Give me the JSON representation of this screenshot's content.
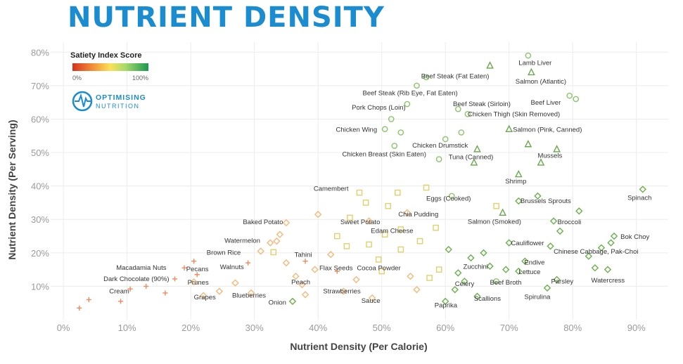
{
  "header": {
    "title": "NUTRIENT DENSITY"
  },
  "legend": {
    "title": "Satiety Index Score",
    "min_label": "0%",
    "max_label": "100%",
    "colors": [
      "#d7301f",
      "#f59b3c",
      "#fbe15a",
      "#a6d96a",
      "#1a9850"
    ]
  },
  "brand": {
    "line1": "OPTIMISING",
    "line2": "NUTRITION",
    "color": "#1a8ccf"
  },
  "chart_data": {
    "type": "scatter",
    "xlabel": "Nutrient Density (Per Calorie)",
    "ylabel": "Nutrient Density (Per Serving)",
    "xlim": [
      -2,
      95
    ],
    "ylim": [
      0,
      83
    ],
    "x_ticks": [
      "0%",
      "10%",
      "20%",
      "30%",
      "40%",
      "50%",
      "60%",
      "70%",
      "80%",
      "90%"
    ],
    "y_ticks": [
      "10%",
      "20%",
      "30%",
      "40%",
      "50%",
      "60%",
      "70%",
      "80%"
    ],
    "x_tick_values": [
      0,
      10,
      20,
      30,
      40,
      50,
      60,
      70,
      80,
      90
    ],
    "y_tick_values": [
      10,
      20,
      30,
      40,
      50,
      60,
      70,
      80
    ],
    "categories": [
      "fats_nuts",
      "starches_fruit",
      "grains_dairy",
      "animal",
      "vegetables",
      "seafood"
    ],
    "category_colors": {
      "fats_nuts": "#f08a5d",
      "starches_fruit": "#f5b87a",
      "grains_dairy": "#e3cf6d",
      "animal": "#8cc46b",
      "vegetables": "#6ab04c",
      "seafood": "#6aa84f"
    },
    "category_markers": {
      "fats_nuts": "plus",
      "starches_fruit": "diamond",
      "grains_dairy": "square",
      "animal": "circle",
      "vegetables": "diamond",
      "seafood": "triangle"
    },
    "points": [
      {
        "label": "Cream",
        "x": 10.5,
        "y": 9.2,
        "cat": "fats_nuts",
        "lx": 7.2,
        "ly": 8.5,
        "anchor": "start"
      },
      {
        "label": "Dark Chocolate (90%)",
        "x": 17.5,
        "y": 12.2,
        "cat": "fats_nuts",
        "lx": 6.3,
        "ly": 12.2,
        "anchor": "start"
      },
      {
        "label": "Macadamia Nuts",
        "x": 19,
        "y": 15.5,
        "cat": "fats_nuts",
        "lx": 8.3,
        "ly": 15.5,
        "anchor": "start"
      },
      {
        "label": "Pecans",
        "x": 20.5,
        "y": 17.5,
        "cat": "fats_nuts",
        "lx": 19.3,
        "ly": 15.1,
        "anchor": "start"
      },
      {
        "label": "Prunes",
        "x": 20.5,
        "y": 11.3,
        "cat": "starches_fruit",
        "lx": 19.5,
        "ly": 11.1,
        "anchor": "start"
      },
      {
        "label": "Grapes",
        "x": 22,
        "y": 7.2,
        "cat": "starches_fruit",
        "lx": 20.5,
        "ly": 6.7,
        "anchor": "start"
      },
      {
        "label": "Walnuts",
        "x": 29,
        "y": 17,
        "cat": "fats_nuts",
        "lx": 24.6,
        "ly": 15.8,
        "anchor": "start"
      },
      {
        "label": "Blueberries",
        "x": 29.5,
        "y": 8,
        "cat": "starches_fruit",
        "lx": 26.5,
        "ly": 7.3,
        "anchor": "start"
      },
      {
        "label": "Brown Rice",
        "x": 33,
        "y": 20.2,
        "cat": "grains_dairy",
        "lx": 22.5,
        "ly": 20.1,
        "anchor": "start"
      },
      {
        "label": "Watermelon",
        "x": 33.5,
        "y": 23.5,
        "cat": "starches_fruit",
        "lx": 25.3,
        "ly": 23.6,
        "anchor": "start"
      },
      {
        "label": "Baked Potato",
        "x": 35,
        "y": 29,
        "cat": "starches_fruit",
        "lx": 28.2,
        "ly": 29.2,
        "anchor": "start"
      },
      {
        "label": "Onion",
        "x": 36,
        "y": 5.5,
        "cat": "vegetables",
        "lx": 32.2,
        "ly": 5.1,
        "anchor": "start"
      },
      {
        "label": "Peach",
        "x": 37.5,
        "y": 10.5,
        "cat": "starches_fruit",
        "lx": 35.8,
        "ly": 11.2,
        "anchor": "start"
      },
      {
        "label": "Tahini",
        "x": 38,
        "y": 17.5,
        "cat": "fats_nuts",
        "lx": 36.3,
        "ly": 19.4,
        "anchor": "start"
      },
      {
        "label": "Flax Seeds",
        "x": 43,
        "y": 14.5,
        "cat": "fats_nuts",
        "lx": 40.2,
        "ly": 15.4,
        "anchor": "start"
      },
      {
        "label": "Strawberries",
        "x": 44,
        "y": 8.5,
        "cat": "starches_fruit",
        "lx": 40.8,
        "ly": 8.5,
        "anchor": "start"
      },
      {
        "label": "Camembert",
        "x": 46.5,
        "y": 38,
        "cat": "grains_dairy",
        "lx": 39.3,
        "ly": 39.2,
        "anchor": "start"
      },
      {
        "label": "Sweet Potato",
        "x": 48,
        "y": 29.5,
        "cat": "starches_fruit",
        "lx": 43.5,
        "ly": 29.2,
        "anchor": "start"
      },
      {
        "label": "Cocoa Powder",
        "x": 50,
        "y": 14.5,
        "cat": "grains_dairy",
        "lx": 46.1,
        "ly": 15.4,
        "anchor": "start"
      },
      {
        "label": "Sauce",
        "x": 48.5,
        "y": 6.5,
        "cat": "starches_fruit",
        "lx": 46.8,
        "ly": 5.7,
        "anchor": "start"
      },
      {
        "label": "Edam Cheese",
        "x": 53,
        "y": 27,
        "cat": "grains_dairy",
        "lx": 48.3,
        "ly": 26.6,
        "anchor": "start"
      },
      {
        "label": "Chia Pudding",
        "x": 54,
        "y": 32,
        "cat": "starches_fruit",
        "lx": 52.6,
        "ly": 31.5,
        "anchor": "start"
      },
      {
        "label": "Chicken Breast (Skin Eaten)",
        "x": 52,
        "y": 52,
        "cat": "animal",
        "lx": 43.8,
        "ly": 49.5,
        "anchor": "start"
      },
      {
        "label": "Chicken Wing",
        "x": 50.5,
        "y": 57,
        "cat": "animal",
        "lx": 42.8,
        "ly": 56.8,
        "anchor": "start"
      },
      {
        "label": "Pork Chops (Loin)",
        "x": 54,
        "y": 64.5,
        "cat": "animal",
        "lx": 45.3,
        "ly": 63.5,
        "anchor": "start"
      },
      {
        "label": "Beef Steak (Rib Eye, Fat Eaten)",
        "x": 55.5,
        "y": 70,
        "cat": "animal",
        "lx": 47,
        "ly": 67.8,
        "anchor": "start"
      },
      {
        "label": "Beef Steak (Fat Eaten)",
        "x": 57,
        "y": 72.5,
        "cat": "animal",
        "lx": 56.2,
        "ly": 72.8,
        "anchor": "start"
      },
      {
        "label": "Beef Steak (Sirloin)",
        "x": 62,
        "y": 63,
        "cat": "animal",
        "lx": 61.2,
        "ly": 64.5,
        "anchor": "start"
      },
      {
        "label": "Chicken Thigh (Skin Removed)",
        "x": 63.5,
        "y": 61.5,
        "cat": "animal",
        "lx": 63.5,
        "ly": 61.5,
        "anchor": "start"
      },
      {
        "label": "Chicken Drumstick",
        "x": 60,
        "y": 54,
        "cat": "animal",
        "lx": 54.8,
        "ly": 52.1,
        "anchor": "start"
      },
      {
        "label": "Tuna (Canned)",
        "x": 65,
        "y": 51,
        "cat": "seafood",
        "lx": 60.5,
        "ly": 48.6,
        "anchor": "start"
      },
      {
        "label": "Eggs (Cooked)",
        "x": 61,
        "y": 37,
        "cat": "animal",
        "lx": 57,
        "ly": 36.2,
        "anchor": "start"
      },
      {
        "label": "Salmon (Smoked)",
        "x": 69,
        "y": 32,
        "cat": "seafood",
        "lx": 63.5,
        "ly": 29.3,
        "anchor": "start"
      },
      {
        "label": "Shrimp",
        "x": 71.5,
        "y": 43.5,
        "cat": "seafood",
        "lx": 69.4,
        "ly": 41.4,
        "anchor": "start"
      },
      {
        "label": "Brussels Sprouts",
        "x": 71.5,
        "y": 35.5,
        "cat": "vegetables",
        "lx": 71.8,
        "ly": 35.5,
        "anchor": "start"
      },
      {
        "label": "Cauliflower",
        "x": 70,
        "y": 23,
        "cat": "vegetables",
        "lx": 70.3,
        "ly": 22.9,
        "anchor": "start"
      },
      {
        "label": "Zucchini",
        "x": 64,
        "y": 18.5,
        "cat": "vegetables",
        "lx": 62.8,
        "ly": 15.9,
        "anchor": "start"
      },
      {
        "label": "Celery",
        "x": 63,
        "y": 11.5,
        "cat": "vegetables",
        "lx": 61.5,
        "ly": 10.7,
        "anchor": "start"
      },
      {
        "label": "Paprika",
        "x": 60,
        "y": 5.5,
        "cat": "vegetables",
        "lx": 58.3,
        "ly": 4.3,
        "anchor": "start"
      },
      {
        "label": "Scallions",
        "x": 65,
        "y": 7,
        "cat": "vegetables",
        "lx": 64.5,
        "ly": 6.3,
        "anchor": "start"
      },
      {
        "label": "Beef Broth",
        "x": 68,
        "y": 11.5,
        "cat": "animal",
        "lx": 67,
        "ly": 11.1,
        "anchor": "start"
      },
      {
        "label": "Endive",
        "x": 72.5,
        "y": 17.5,
        "cat": "vegetables",
        "lx": 72.4,
        "ly": 17.1,
        "anchor": "start"
      },
      {
        "label": "Lettuce",
        "x": 71.5,
        "y": 14.5,
        "cat": "vegetables",
        "lx": 71.5,
        "ly": 14.3,
        "anchor": "start"
      },
      {
        "label": "Spirulina",
        "x": 76,
        "y": 9.5,
        "cat": "vegetables",
        "lx": 72.4,
        "ly": 6.8,
        "anchor": "start"
      },
      {
        "label": "Parsley",
        "x": 77.5,
        "y": 12,
        "cat": "vegetables",
        "lx": 76.6,
        "ly": 11.4,
        "anchor": "start"
      },
      {
        "label": "Broccoli",
        "x": 77,
        "y": 29.5,
        "cat": "vegetables",
        "lx": 77.6,
        "ly": 29.2,
        "anchor": "start"
      },
      {
        "label": "Mussels",
        "x": 77.5,
        "y": 51,
        "cat": "seafood",
        "lx": 74.5,
        "ly": 49.1,
        "anchor": "start"
      },
      {
        "label": "Salmon (Pink, Canned)",
        "x": 70,
        "y": 57,
        "cat": "seafood",
        "lx": 70.6,
        "ly": 56.8,
        "anchor": "start"
      },
      {
        "label": "Beef Liver",
        "x": 79.5,
        "y": 67,
        "cat": "animal",
        "lx": 73.4,
        "ly": 64.9,
        "anchor": "start"
      },
      {
        "label": "Salmon (Atlantic)",
        "x": 73.5,
        "y": 74,
        "cat": "seafood",
        "lx": 71,
        "ly": 71.2,
        "anchor": "start"
      },
      {
        "label": "Lamb Liver",
        "x": 73,
        "y": 79,
        "cat": "animal",
        "lx": 71.5,
        "ly": 76.8,
        "anchor": "start"
      },
      {
        "label": "Chinese Cabbage, Pak-Choi",
        "x": 84.5,
        "y": 21.5,
        "cat": "vegetables",
        "lx": 77,
        "ly": 20.4,
        "anchor": "start"
      },
      {
        "label": "Bok Choy",
        "x": 86.5,
        "y": 25,
        "cat": "vegetables",
        "lx": 87.5,
        "ly": 24.8,
        "anchor": "start"
      },
      {
        "label": "Watercress",
        "x": 85.5,
        "y": 15,
        "cat": "vegetables",
        "lx": 82.9,
        "ly": 11.8,
        "anchor": "start"
      },
      {
        "label": "Spinach",
        "x": 91,
        "y": 39,
        "cat": "vegetables",
        "lx": 88.6,
        "ly": 36.5,
        "anchor": "start"
      }
    ],
    "extra_points": [
      [
        4,
        6,
        "fats_nuts"
      ],
      [
        2.5,
        3.5,
        "fats_nuts"
      ],
      [
        9,
        5.5,
        "fats_nuts"
      ],
      [
        13,
        10,
        "fats_nuts"
      ],
      [
        16,
        8,
        "fats_nuts"
      ],
      [
        21,
        13.5,
        "fats_nuts"
      ],
      [
        24.5,
        8.5,
        "starches_fruit"
      ],
      [
        27,
        11,
        "starches_fruit"
      ],
      [
        31,
        20.5,
        "starches_fruit"
      ],
      [
        32.5,
        23,
        "starches_fruit"
      ],
      [
        34,
        25.5,
        "starches_fruit"
      ],
      [
        35,
        17,
        "starches_fruit"
      ],
      [
        36.5,
        13,
        "starches_fruit"
      ],
      [
        38,
        7.5,
        "starches_fruit"
      ],
      [
        39.5,
        15,
        "starches_fruit"
      ],
      [
        40,
        31.5,
        "starches_fruit"
      ],
      [
        42,
        19.5,
        "starches_fruit"
      ],
      [
        43,
        25,
        "grains_dairy"
      ],
      [
        44.5,
        22,
        "grains_dairy"
      ],
      [
        45,
        30.5,
        "grains_dairy"
      ],
      [
        46,
        12,
        "starches_fruit"
      ],
      [
        47.5,
        35,
        "grains_dairy"
      ],
      [
        48,
        22.5,
        "grains_dairy"
      ],
      [
        49.5,
        18,
        "grains_dairy"
      ],
      [
        50.5,
        25.5,
        "grains_dairy"
      ],
      [
        51,
        34,
        "grains_dairy"
      ],
      [
        52.5,
        38,
        "grains_dairy"
      ],
      [
        53,
        21,
        "grains_dairy"
      ],
      [
        54.5,
        13,
        "starches_fruit"
      ],
      [
        55.5,
        9,
        "starches_fruit"
      ],
      [
        56,
        23.5,
        "grains_dairy"
      ],
      [
        57,
        39.5,
        "grains_dairy"
      ],
      [
        57.5,
        12.5,
        "grains_dairy"
      ],
      [
        58.5,
        27.5,
        "grains_dairy"
      ],
      [
        59,
        15,
        "grains_dairy"
      ],
      [
        60.5,
        21,
        "vegetables"
      ],
      [
        62,
        14,
        "vegetables"
      ],
      [
        61.5,
        9,
        "vegetables"
      ],
      [
        66,
        20,
        "vegetables"
      ],
      [
        67,
        16,
        "vegetables"
      ],
      [
        68,
        34,
        "grains_dairy"
      ],
      [
        69.5,
        15,
        "vegetables"
      ],
      [
        73,
        52.5,
        "seafood"
      ],
      [
        75,
        47,
        "seafood"
      ],
      [
        51.5,
        60,
        "animal"
      ],
      [
        53,
        56,
        "animal"
      ],
      [
        59,
        48,
        "animal"
      ],
      [
        62.5,
        56,
        "animal"
      ],
      [
        64.5,
        47,
        "seafood"
      ],
      [
        67,
        76,
        "seafood"
      ],
      [
        80.5,
        66,
        "animal"
      ],
      [
        76.5,
        22,
        "vegetables"
      ],
      [
        78,
        26.5,
        "vegetables"
      ],
      [
        81,
        32.5,
        "vegetables"
      ],
      [
        82.5,
        19,
        "vegetables"
      ],
      [
        83.5,
        15.5,
        "vegetables"
      ],
      [
        86,
        23,
        "vegetables"
      ],
      [
        74.5,
        37,
        "vegetables"
      ]
    ]
  }
}
